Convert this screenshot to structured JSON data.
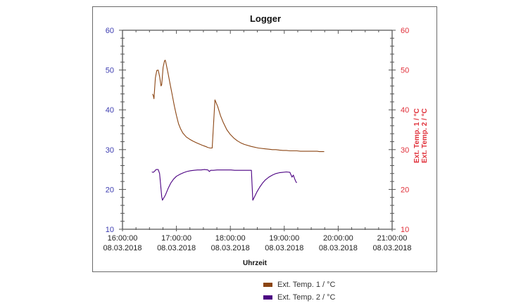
{
  "chart_data": {
    "type": "line",
    "title": "Logger",
    "xlabel": "Uhrzeit",
    "ylabel_left": "",
    "ylabel_right": [
      "Ext. Temp. 1 / °C",
      "Ext. Temp. 2 / °C"
    ],
    "xlim_hours": [
      16,
      21
    ],
    "ylim": [
      10,
      60
    ],
    "yticks": [
      10,
      20,
      30,
      40,
      50,
      60
    ],
    "xticks": [
      {
        "time": "16:00:00",
        "date": "08.03.2018",
        "hour": 16
      },
      {
        "time": "17:00:00",
        "date": "08.03.2018",
        "hour": 17
      },
      {
        "time": "18:00:00",
        "date": "08.03.2018",
        "hour": 18
      },
      {
        "time": "19:00:00",
        "date": "08.03.2018",
        "hour": 19
      },
      {
        "time": "20:00:00",
        "date": "08.03.2018",
        "hour": 20
      },
      {
        "time": "21:00:00",
        "date": "08.03.2018",
        "hour": 21
      }
    ],
    "grid": false,
    "legend_position": "bottom",
    "left_axis_color": "#3b3bb0",
    "right_axis_color": "#e0303a",
    "series": [
      {
        "name": "Ext. Temp. 1 / °C",
        "color": "#8b4513",
        "x_hours": [
          16.558,
          16.571,
          16.584,
          16.61,
          16.636,
          16.662,
          16.688,
          16.714,
          16.727,
          16.753,
          16.779,
          16.792,
          16.805,
          16.844,
          16.883,
          16.922,
          16.961,
          17.0,
          17.039,
          17.078,
          17.117,
          17.182,
          17.247,
          17.312,
          17.377,
          17.442,
          17.481,
          17.52,
          17.559,
          17.572,
          17.598,
          17.624,
          17.663,
          17.714,
          17.766,
          17.818,
          17.87,
          17.935,
          18.0,
          18.065,
          18.13,
          18.195,
          18.26,
          18.39,
          18.52,
          18.65,
          18.714,
          18.779,
          18.844,
          18.909,
          18.974,
          19.039,
          19.104,
          19.169,
          19.234,
          19.299,
          19.364,
          19.416,
          19.468,
          19.52,
          19.572,
          19.61,
          19.65,
          19.714,
          19.74
        ],
        "values": [
          44.0,
          43.6,
          42.8,
          48.0,
          49.9,
          50.0,
          48.4,
          46.0,
          46.3,
          50.7,
          52.3,
          52.5,
          51.8,
          49.2,
          46.5,
          43.8,
          41.0,
          38.6,
          36.5,
          35.2,
          34.2,
          33.2,
          32.6,
          32.1,
          31.7,
          31.3,
          31.1,
          30.9,
          30.7,
          30.6,
          30.5,
          30.4,
          30.4,
          42.5,
          40.8,
          38.5,
          36.8,
          35.0,
          33.8,
          32.9,
          32.2,
          31.7,
          31.3,
          30.8,
          30.4,
          30.2,
          30.1,
          30.0,
          30.0,
          29.9,
          29.8,
          29.8,
          29.7,
          29.7,
          29.7,
          29.6,
          29.6,
          29.6,
          29.6,
          29.6,
          29.6,
          29.6,
          29.5,
          29.5,
          29.5
        ]
      },
      {
        "name": "Ext. Temp. 2 / °C",
        "color": "#4b0082",
        "x_hours": [
          16.545,
          16.571,
          16.597,
          16.623,
          16.662,
          16.688,
          16.727,
          16.74,
          16.792,
          16.844,
          16.896,
          16.948,
          17.0,
          17.065,
          17.13,
          17.195,
          17.26,
          17.325,
          17.39,
          17.455,
          17.52,
          17.585,
          17.61,
          17.636,
          17.662,
          17.688,
          17.753,
          17.818,
          17.883,
          17.948,
          18.013,
          18.078,
          18.143,
          18.208,
          18.273,
          18.338,
          18.39,
          18.403,
          18.416,
          18.442,
          18.494,
          18.546,
          18.598,
          18.65,
          18.714,
          18.779,
          18.844,
          18.909,
          18.974,
          19.039,
          19.104,
          19.143,
          19.169,
          19.195,
          19.208,
          19.221,
          19.234
        ],
        "values": [
          24.4,
          24.3,
          24.6,
          25.0,
          25.0,
          24.0,
          18.2,
          17.3,
          18.5,
          20.2,
          21.6,
          22.6,
          23.3,
          23.8,
          24.2,
          24.5,
          24.7,
          24.8,
          24.9,
          24.9,
          25.0,
          24.9,
          24.5,
          24.8,
          24.8,
          24.8,
          24.9,
          24.9,
          24.9,
          24.9,
          24.9,
          24.8,
          24.8,
          24.8,
          24.8,
          24.8,
          24.8,
          21.0,
          17.3,
          18.0,
          19.4,
          20.6,
          21.6,
          22.4,
          23.1,
          23.6,
          24.0,
          24.2,
          24.3,
          24.4,
          24.3,
          23.1,
          23.6,
          22.6,
          22.2,
          21.8,
          21.7
        ]
      }
    ]
  }
}
